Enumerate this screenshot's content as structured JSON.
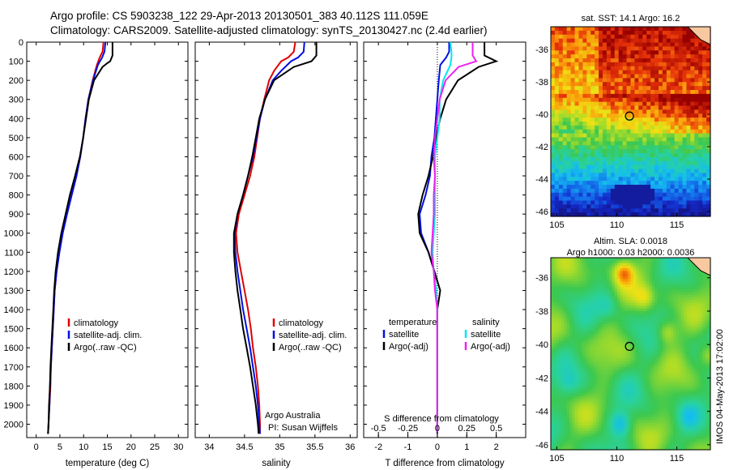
{
  "header": {
    "line1": "Argo profile: CS 5903238_122 29-Apr-2013 20130501_383 40.112S 111.059E",
    "line2": "Climatology: CARS2009. Satellite-adjusted climatology: synTS_20130427.nc (2.4d earlier)"
  },
  "side_label": "IMOS 04-May-2013 17:02:00",
  "colors": {
    "clim": "#e00000",
    "sat": "#0010e0",
    "argo": "#000000",
    "sal_sat": "#00e8f0",
    "sal_argo": "#f020f0"
  },
  "chart_data": [
    {
      "type": "line",
      "xlabel": "temperature (deg C)",
      "ylabel": "",
      "xticks": [
        "0",
        "5",
        "10",
        "15",
        "20",
        "25",
        "30"
      ],
      "yticks": [
        "0",
        "100",
        "200",
        "300",
        "400",
        "500",
        "600",
        "700",
        "800",
        "900",
        "1000",
        "1100",
        "1200",
        "1300",
        "1400",
        "1500",
        "1600",
        "1700",
        "1800",
        "1900",
        "2000"
      ],
      "xlim": [
        -2,
        32
      ],
      "ylim": [
        2070,
        0
      ],
      "legend": [
        "climatology",
        "satellite-adj. clim.",
        "Argo(..raw -QC)"
      ],
      "series": [
        {
          "name": "climatology",
          "color": "#e00000",
          "y": [
            0,
            50,
            80,
            120,
            200,
            300,
            400,
            500,
            600,
            700,
            800,
            900,
            1000,
            1100,
            1200,
            1300,
            1400,
            1500,
            1600,
            1700,
            1800,
            1900,
            2000,
            2050
          ],
          "x": [
            14.2,
            14.0,
            13.4,
            12.8,
            11.9,
            11.0,
            10.4,
            9.9,
            9.3,
            8.4,
            7.3,
            6.4,
            5.5,
            4.8,
            4.3,
            3.9,
            3.7,
            3.5,
            3.3,
            3.1,
            3.0,
            2.8,
            2.6,
            2.5
          ]
        },
        {
          "name": "satellite-adj. clim.",
          "color": "#0010e0",
          "y": [
            0,
            50,
            80,
            120,
            200,
            300,
            400,
            500,
            600,
            700,
            800,
            900,
            1000,
            1100,
            1200,
            1300,
            1400,
            1500,
            1600,
            1700,
            1800,
            1900,
            2000,
            2050
          ],
          "x": [
            14.6,
            14.4,
            13.9,
            13.0,
            12.0,
            11.0,
            10.4,
            9.9,
            9.3,
            8.5,
            7.5,
            6.5,
            5.6,
            4.9,
            4.3,
            3.9,
            3.7,
            3.5,
            3.3,
            3.1,
            2.9,
            2.8,
            2.6,
            2.5
          ]
        },
        {
          "name": "Argo(..raw -QC)",
          "color": "#000000",
          "y": [
            0,
            70,
            100,
            110,
            130,
            200,
            300,
            400,
            500,
            600,
            700,
            800,
            900,
            1000,
            1100,
            1200,
            1300,
            1400,
            1500,
            1600,
            1700,
            1800,
            1900,
            2000,
            2050
          ],
          "x": [
            16.1,
            16.1,
            15.6,
            15.0,
            14.0,
            12.2,
            11.1,
            10.5,
            9.9,
            9.2,
            8.2,
            7.1,
            6.2,
            5.3,
            4.6,
            4.1,
            3.8,
            3.6,
            3.4,
            3.2,
            3.0,
            2.9,
            2.7,
            2.6,
            2.5
          ]
        }
      ]
    },
    {
      "type": "line",
      "xlabel": "salinity",
      "ylabel": "",
      "xticks": [
        "34",
        "34.5",
        "35",
        "35.5",
        "36"
      ],
      "xlim": [
        33.8,
        36.1
      ],
      "ylim": [
        2070,
        0
      ],
      "legend": [
        "climatology",
        "satellite-adj. clim.",
        "Argo(..raw -QC)"
      ],
      "annotation": [
        "Argo Australia",
        "PI: Susan Wijffels"
      ],
      "series": [
        {
          "name": "climatology",
          "color": "#e00000",
          "y": [
            0,
            50,
            80,
            100,
            150,
            200,
            300,
            400,
            500,
            600,
            700,
            800,
            900,
            1000,
            1100,
            1200,
            1300,
            1400,
            1500,
            1600,
            1700,
            1800,
            1900,
            2000,
            2050
          ],
          "x": [
            35.22,
            35.2,
            35.12,
            35.02,
            34.92,
            34.85,
            34.78,
            34.72,
            34.68,
            34.64,
            34.58,
            34.5,
            34.42,
            34.38,
            34.4,
            34.45,
            34.5,
            34.55,
            34.59,
            34.62,
            34.66,
            34.69,
            34.71,
            34.72,
            34.72
          ]
        },
        {
          "name": "satellite-adj. clim.",
          "color": "#0010e0",
          "y": [
            0,
            50,
            80,
            100,
            150,
            200,
            300,
            400,
            500,
            600,
            700,
            800,
            900,
            1000,
            1100,
            1200,
            1300,
            1400,
            1500,
            1600,
            1700,
            1800,
            1900,
            2000,
            2050
          ],
          "x": [
            35.35,
            35.34,
            35.26,
            35.16,
            35.02,
            34.9,
            34.79,
            34.72,
            34.67,
            34.62,
            34.55,
            34.48,
            34.4,
            34.36,
            34.37,
            34.4,
            34.44,
            34.48,
            34.53,
            34.58,
            34.62,
            34.66,
            34.69,
            34.71,
            34.72
          ]
        },
        {
          "name": "Argo(..raw -QC)",
          "color": "#000000",
          "y": [
            0,
            70,
            100,
            130,
            200,
            300,
            400,
            500,
            600,
            700,
            800,
            900,
            1000,
            1100,
            1200,
            1300,
            1400,
            1500,
            1600,
            1700,
            1800,
            1900,
            2000,
            2050
          ],
          "x": [
            35.52,
            35.52,
            35.45,
            35.2,
            34.92,
            34.79,
            34.71,
            34.66,
            34.61,
            34.55,
            34.48,
            34.4,
            34.35,
            34.35,
            34.37,
            34.4,
            34.44,
            34.48,
            34.53,
            34.58,
            34.62,
            34.66,
            34.69,
            34.7
          ]
        }
      ]
    },
    {
      "type": "line",
      "xlabel": "T difference from climatology",
      "top_axis_label": "S difference from climatology",
      "xticks": [
        "-2",
        "-1",
        "0",
        "1",
        "2"
      ],
      "top_ticks": [
        "-0.5",
        "-0.25",
        "0",
        "0.25",
        "0.5"
      ],
      "xlim": [
        -2.5,
        3.0
      ],
      "ylim": [
        2070,
        0
      ],
      "legend_left_title": "temperature",
      "legend_right_title": "salinity",
      "legend_left": [
        "satellite",
        "Argo(-adj)"
      ],
      "legend_right": [
        "satellite",
        "Argo(-adj)"
      ],
      "series": [
        {
          "name": "satellite",
          "color": "#0010e0",
          "y": [
            0,
            50,
            80,
            120,
            200,
            300,
            400,
            500,
            600,
            700,
            800,
            900,
            1000,
            1100,
            1200,
            1300,
            1400,
            1500,
            1600,
            1700,
            1800,
            1900,
            2000,
            2050
          ],
          "x": [
            0.4,
            0.4,
            0.3,
            0.1,
            0.05,
            0.0,
            -0.05,
            -0.1,
            -0.2,
            -0.25,
            -0.4,
            -0.6,
            -0.55,
            -0.3,
            -0.1,
            -0.05,
            0.0,
            0.0,
            0.0,
            0.0,
            0.0,
            0.0,
            0.0,
            0.0
          ]
        },
        {
          "name": "Argo(-adj)",
          "color": "#000000",
          "y": [
            0,
            70,
            100,
            130,
            200,
            300,
            400,
            500,
            600,
            700,
            800,
            900,
            1000,
            1100,
            1200,
            1300,
            1400,
            1500,
            1600,
            1700,
            1800,
            1900,
            2000,
            2050
          ],
          "x": [
            1.6,
            1.6,
            2.0,
            1.4,
            0.7,
            0.3,
            0.1,
            -0.05,
            -0.15,
            -0.3,
            -0.5,
            -0.65,
            -0.6,
            -0.3,
            -0.1,
            0.1,
            0.0,
            0.0,
            0.0,
            0.0,
            0.0,
            0.0,
            0.0,
            0.0
          ]
        },
        {
          "name": "satellite",
          "color": "#00e8f0",
          "y": [
            0,
            50,
            80,
            120,
            200,
            300,
            400,
            500,
            600,
            700,
            800,
            900,
            1000,
            1100,
            1200,
            1300,
            1400,
            1500,
            1600,
            1700,
            1800,
            1900,
            2000,
            2050
          ],
          "x": [
            0.11,
            0.12,
            0.12,
            0.11,
            0.05,
            0.02,
            0.02,
            0.0,
            -0.02,
            -0.02,
            -0.02,
            -0.02,
            -0.03,
            -0.04,
            -0.03,
            -0.01,
            0.0,
            0.0,
            0.0,
            0.0,
            0.0,
            0.0,
            0.0,
            0.0
          ]
        },
        {
          "name": "Argo(-adj)",
          "color": "#f020f0",
          "y": [
            0,
            70,
            100,
            130,
            200,
            300,
            400,
            500,
            600,
            700,
            800,
            900,
            1000,
            1100,
            1200,
            1300,
            1400,
            1500,
            1600,
            1700,
            1800,
            1900,
            2000,
            2050
          ],
          "x": [
            0.3,
            0.3,
            0.33,
            0.18,
            0.07,
            0.02,
            0.0,
            -0.02,
            -0.03,
            -0.02,
            -0.03,
            -0.03,
            -0.04,
            -0.05,
            -0.03,
            -0.02,
            0.0,
            0.0,
            0.0,
            0.0,
            0.0,
            0.0,
            0.0,
            0.0
          ]
        }
      ]
    },
    {
      "type": "heatmap",
      "title": "sat. SST: 14.1  Argo: 16.2",
      "xticks": [
        "105",
        "110",
        "115"
      ],
      "yticks": [
        "-36",
        "-38",
        "-40",
        "-42",
        "-44",
        "-46"
      ],
      "xlim": [
        104.5,
        117.8
      ],
      "ylim": [
        -46.3,
        -34.6
      ],
      "marker": {
        "lon": 111.06,
        "lat": -40.11
      }
    },
    {
      "type": "heatmap",
      "title": "Altim. SLA: 0.0018",
      "subtitle": "Argo h1000: 0.03 h2000: 0.0036",
      "xticks": [
        "105",
        "110",
        "115"
      ],
      "yticks": [
        "-36",
        "-38",
        "-40",
        "-42",
        "-44",
        "-46"
      ],
      "xlim": [
        104.5,
        117.8
      ],
      "ylim": [
        -46.3,
        -34.8
      ],
      "marker": {
        "lon": 111.06,
        "lat": -40.11
      }
    }
  ]
}
